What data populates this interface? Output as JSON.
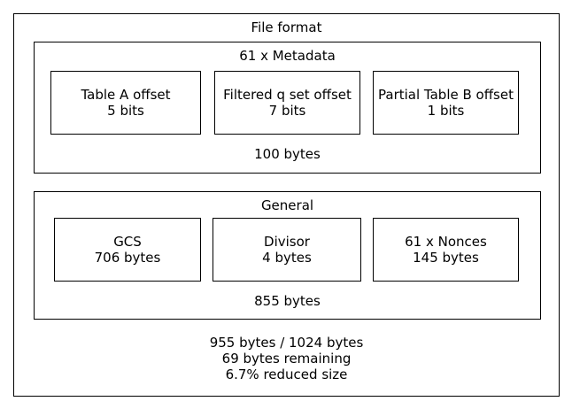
{
  "diagram": {
    "title": "File format",
    "metadata": {
      "title": "61 x Metadata",
      "cells": [
        {
          "name": "Table A offset",
          "size": "5 bits"
        },
        {
          "name": "Filtered q set offset",
          "size": "7 bits"
        },
        {
          "name": "Partial Table B offset",
          "size": "1 bits"
        }
      ],
      "total": "100 bytes"
    },
    "general": {
      "title": "General",
      "cells": [
        {
          "name": "GCS",
          "size": "706 bytes"
        },
        {
          "name": "Divisor",
          "size": "4 bytes"
        },
        {
          "name": "61 x Nonces",
          "size": "145 bytes"
        }
      ],
      "total": "855 bytes"
    },
    "summary": {
      "line1": "955 bytes / 1024 bytes",
      "line2": "69 bytes remaining",
      "line3": "6.7% reduced size"
    }
  }
}
